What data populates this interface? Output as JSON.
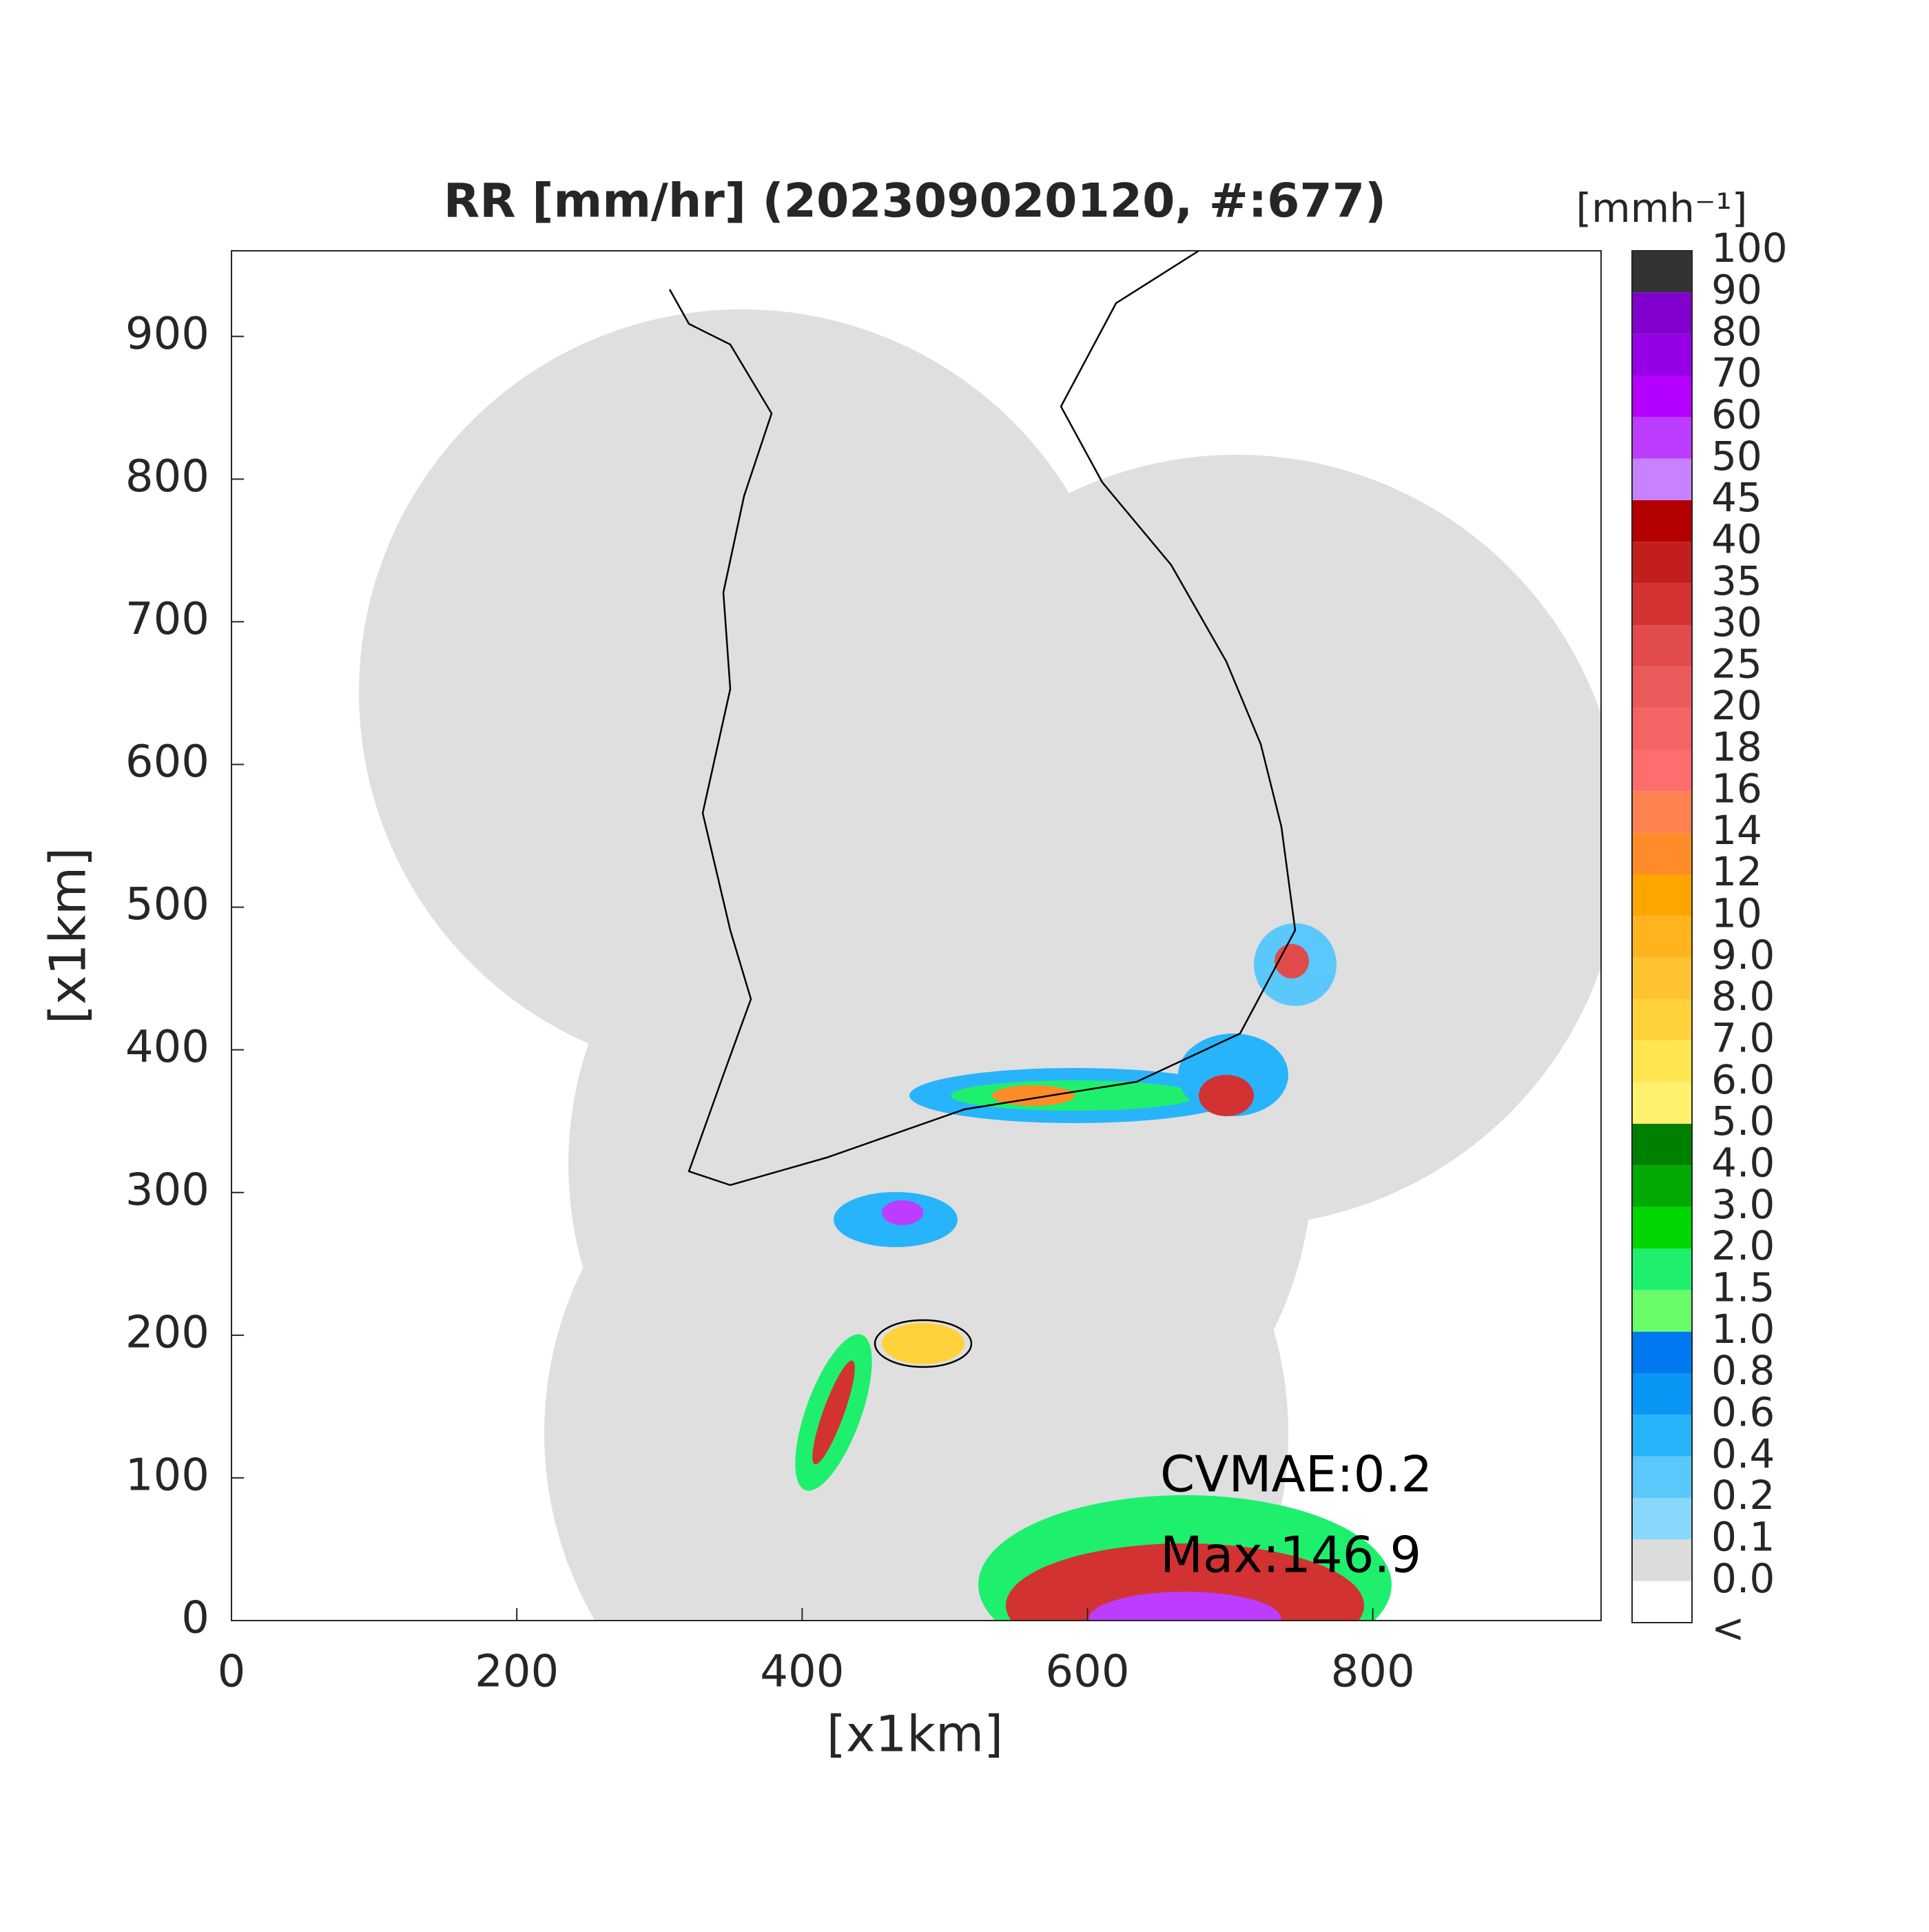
{
  "chart_data": {
    "type": "radar-map",
    "title": "RR [mm/hr] (202309020120, #:677)",
    "x_label": "[x1km]",
    "y_label": "[x1km]",
    "xlim": [
      0,
      960
    ],
    "ylim": [
      0,
      960
    ],
    "xticks": [
      0,
      200,
      400,
      600,
      800
    ],
    "yticks": [
      0,
      100,
      200,
      300,
      400,
      500,
      600,
      700,
      800,
      900
    ],
    "annotations": [
      "CVMAE:0.2",
      "Max:146.9"
    ],
    "colorbar": {
      "title": "[mmh⁻¹]",
      "labels": [
        "<",
        "0.0",
        "0.1",
        "0.2",
        "0.4",
        "0.6",
        "0.8",
        "1.0",
        "1.5",
        "2.0",
        "3.0",
        "4.0",
        "5.0",
        "6.0",
        "7.0",
        "8.0",
        "9.0",
        "10",
        "12",
        "14",
        "16",
        "18",
        "20",
        "25",
        "30",
        "35",
        "40",
        "45",
        "50",
        "60",
        "70",
        "80",
        "90",
        "100"
      ],
      "colors": [
        "#ffffff",
        "#dcdcdc",
        "#87d8fa",
        "#5ac8fa",
        "#28b4fa",
        "#0a96f5",
        "#0078f0",
        "#69fc69",
        "#1ef06e",
        "#00d700",
        "#00aa00",
        "#008000",
        "#fff06e",
        "#ffe650",
        "#ffd23c",
        "#ffc332",
        "#ffb41e",
        "#ffa500",
        "#ff8c28",
        "#ff8250",
        "#ff6e6e",
        "#f56464",
        "#eb5a5a",
        "#e14b4b",
        "#d23232",
        "#c31e1e",
        "#b40000",
        "#c882ff",
        "#bc3cff",
        "#b400ff",
        "#9600e6",
        "#8200cd",
        "#333333"
      ]
    }
  }
}
